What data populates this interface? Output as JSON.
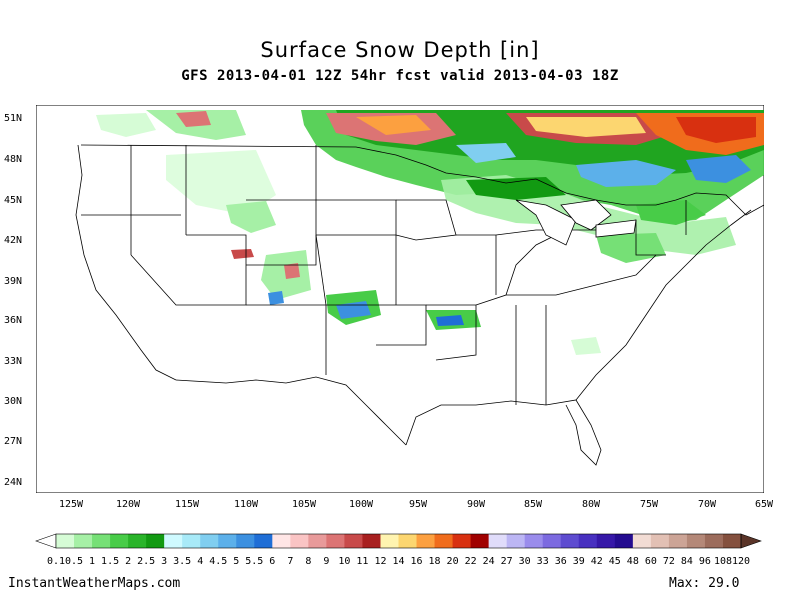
{
  "title": "Surface Snow Depth [in]",
  "subtitle": "GFS 2013-04-01 12Z 54hr fcst valid 2013-04-03 18Z",
  "lat_labels": [
    "51N",
    "48N",
    "45N",
    "42N",
    "39N",
    "36N",
    "33N",
    "30N",
    "27N",
    "24N"
  ],
  "lon_labels": [
    "125W",
    "120W",
    "115W",
    "110W",
    "105W",
    "100W",
    "95W",
    "90W",
    "85W",
    "80W",
    "75W",
    "70W",
    "65W"
  ],
  "legend": {
    "labels": [
      "0.1",
      "0.5",
      "1",
      "1.5",
      "2",
      "2.5",
      "3",
      "3.5",
      "4",
      "4.5",
      "5",
      "5.5",
      "6",
      "7",
      "8",
      "9",
      "10",
      "11",
      "12",
      "14",
      "16",
      "18",
      "20",
      "22",
      "24",
      "27",
      "30",
      "33",
      "36",
      "39",
      "42",
      "45",
      "48",
      "60",
      "72",
      "84",
      "96",
      "108",
      "120"
    ],
    "colors": [
      "#d6fcd6",
      "#a6f0a6",
      "#76e076",
      "#48cc48",
      "#2ab42a",
      "#129a12",
      "#cffaff",
      "#a8eaf8",
      "#80cef0",
      "#5cb0ea",
      "#3c90e0",
      "#1f6ed6",
      "#ffe6e6",
      "#fac4c4",
      "#e89a9a",
      "#dc7474",
      "#c84a4a",
      "#a82020",
      "#fff4b0",
      "#fcd670",
      "#fca040",
      "#f06c1c",
      "#d83010",
      "#a00000",
      "#e0dcfa",
      "#bcb6f4",
      "#9a8cec",
      "#7c6ae0",
      "#5e4cd0",
      "#4830c0",
      "#3618a8",
      "#240c90",
      "#f2dcd4",
      "#e2c0b4",
      "#cca496",
      "#b48878",
      "#9c6c5c",
      "#84503e"
    ]
  },
  "footer": {
    "credit": "InstantWeatherMaps.com",
    "max": "Max:  29.0"
  }
}
